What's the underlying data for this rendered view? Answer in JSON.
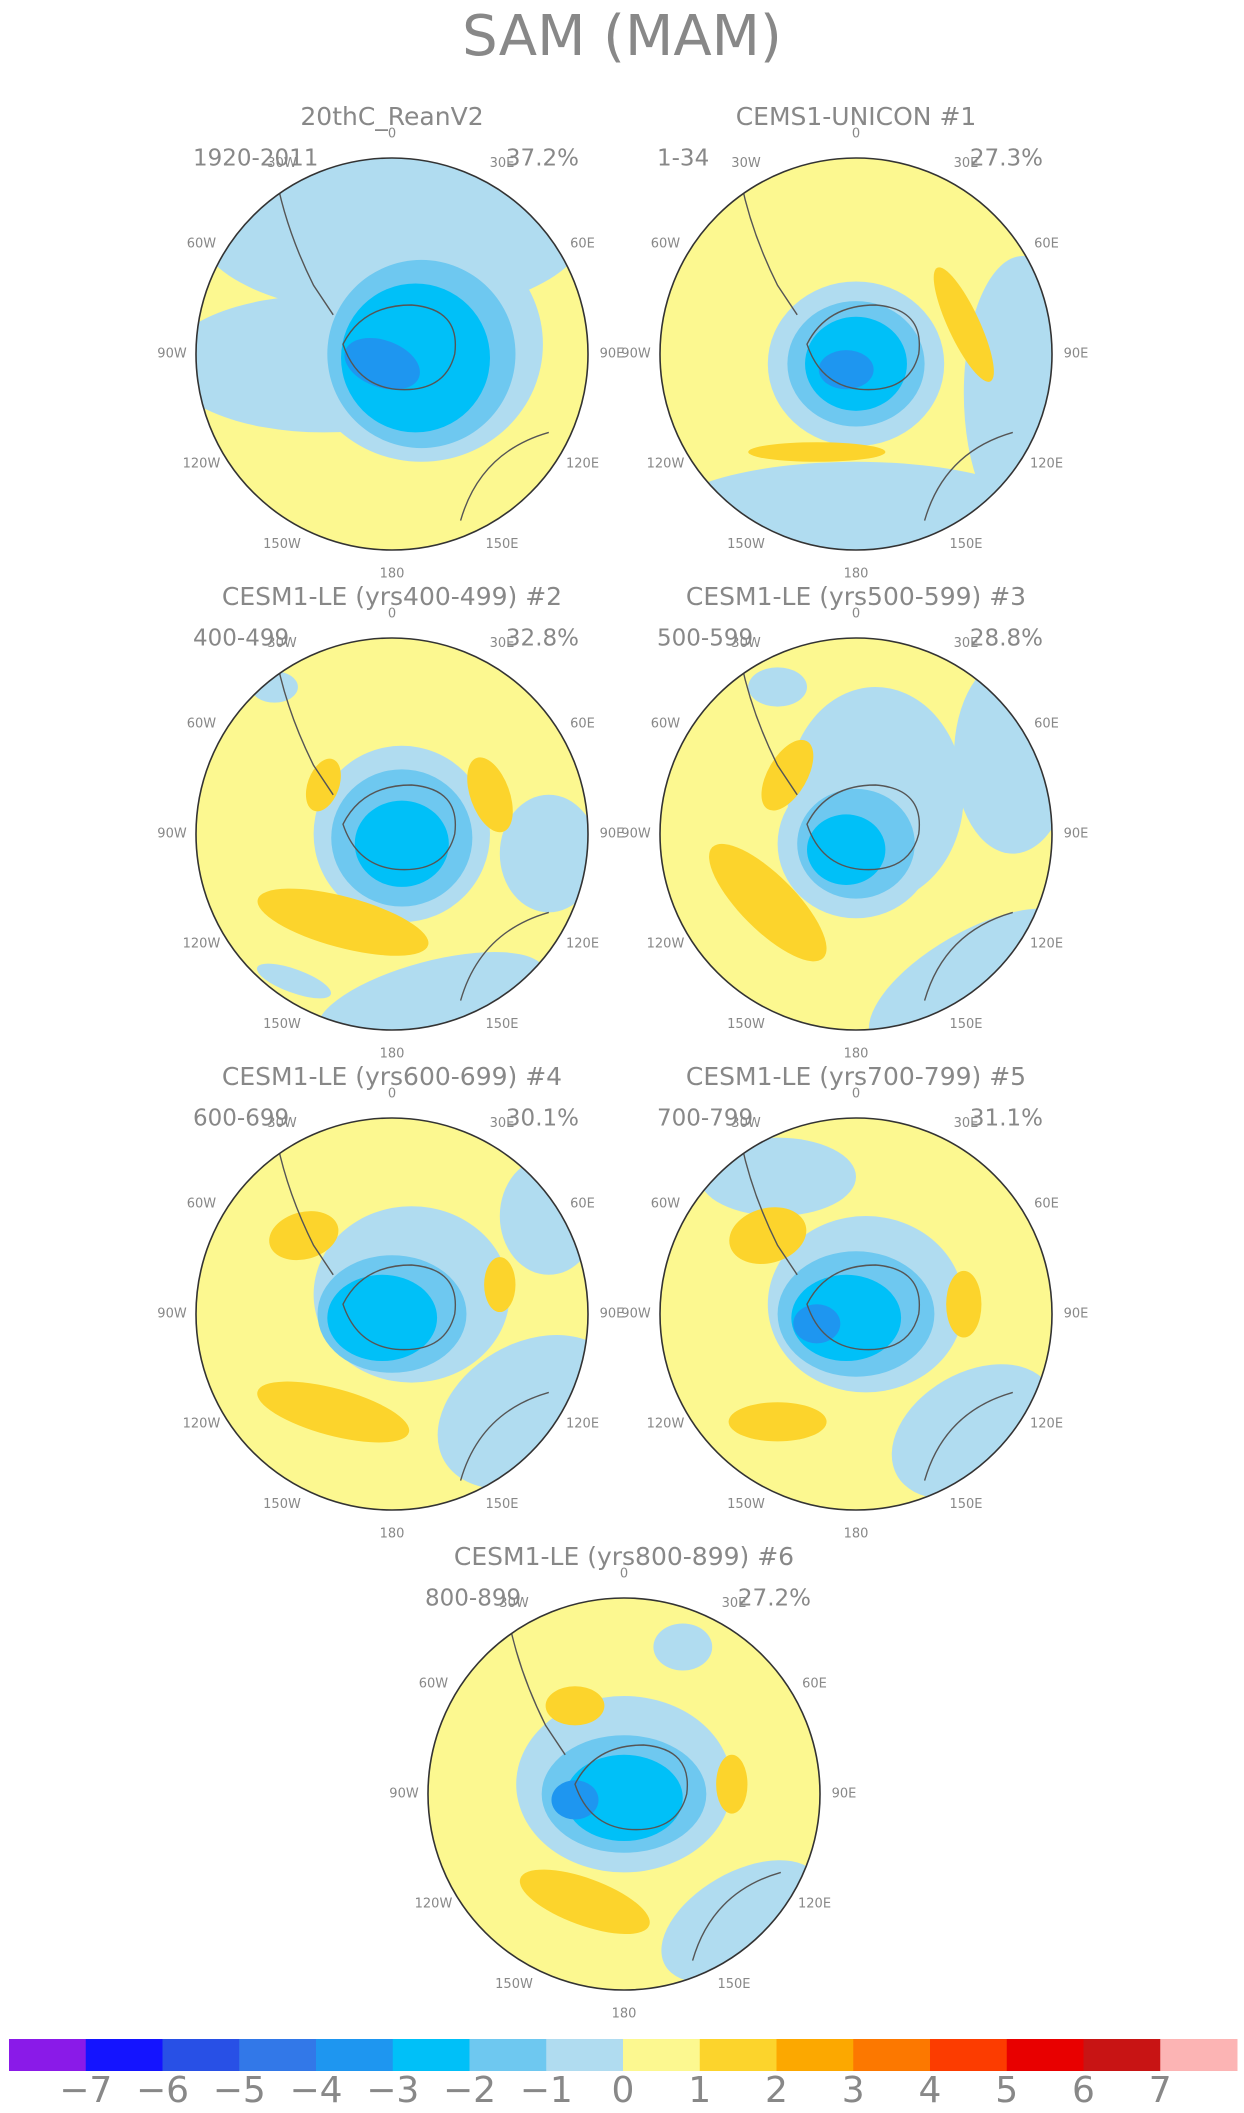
{
  "title": "SAM (MAM)",
  "longitude_labels": [
    "0",
    "30E",
    "60E",
    "90E",
    "120E",
    "150E",
    "180",
    "150W",
    "120W",
    "90W",
    "60W",
    "30W"
  ],
  "panels": [
    {
      "title": "20thC_ReanV2",
      "period": "1920-2011",
      "variance": "37.2%"
    },
    {
      "title": "CEMS1-UNICON      #1",
      "period": "1-34",
      "variance": "27.3%"
    },
    {
      "title": "CESM1-LE (yrs400-499) #2",
      "period": "400-499",
      "variance": "32.8%"
    },
    {
      "title": "CESM1-LE (yrs500-599) #3",
      "period": "500-599",
      "variance": "28.8%"
    },
    {
      "title": "CESM1-LE (yrs600-699) #4",
      "period": "600-699",
      "variance": "30.1%"
    },
    {
      "title": "CESM1-LE (yrs700-799) #5",
      "period": "700-799",
      "variance": "31.1%"
    },
    {
      "title": "CESM1-LE (yrs800-899) #6",
      "period": "800-899",
      "variance": "27.2%"
    }
  ],
  "colorbar": {
    "colors": [
      "#8a1ae8",
      "#1414ff",
      "#2850e6",
      "#3278e8",
      "#1e96f0",
      "#00c0f8",
      "#6ec8f0",
      "#b0dcf0",
      "#fcf890",
      "#fcd42c",
      "#fca800",
      "#fc7800",
      "#fc3c00",
      "#e80000",
      "#c81414",
      "#fcb4b4"
    ],
    "ticks": [
      {
        "value": -7,
        "label": "−7"
      },
      {
        "value": -6,
        "label": "−6"
      },
      {
        "value": -5,
        "label": "−5"
      },
      {
        "value": -4,
        "label": "−4"
      },
      {
        "value": -3,
        "label": "−3"
      },
      {
        "value": -2,
        "label": "−2"
      },
      {
        "value": -1,
        "label": "−1"
      },
      0,
      1,
      2,
      3,
      4,
      5,
      6,
      7
    ]
  }
}
